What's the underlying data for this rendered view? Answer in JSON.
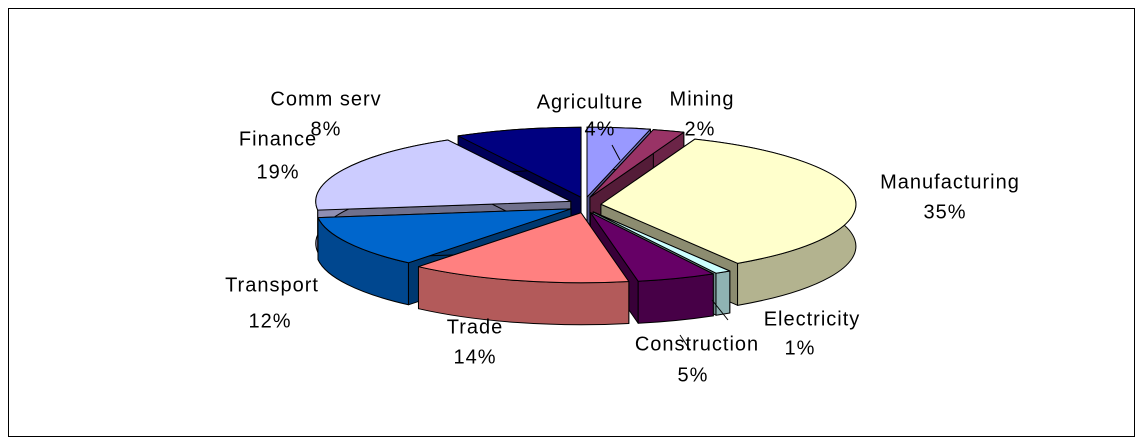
{
  "chart_data": {
    "type": "pie",
    "categories": [
      "Agriculture",
      "Mining",
      "Manufacturing",
      "Electricity",
      "Construction",
      "Trade",
      "Transport",
      "Finance",
      "Comm serv"
    ],
    "values": [
      4,
      2,
      35,
      1,
      5,
      14,
      12,
      19,
      8
    ],
    "value_labels": [
      "4%",
      "2%",
      "35%",
      "1%",
      "5%",
      "14%",
      "12%",
      "19%",
      "8%"
    ],
    "colors": [
      "#9999ff",
      "#993366",
      "#ffffcc",
      "#ccffff",
      "#660066",
      "#ff8080",
      "#0066cc",
      "#ccccff",
      "#000080"
    ]
  }
}
